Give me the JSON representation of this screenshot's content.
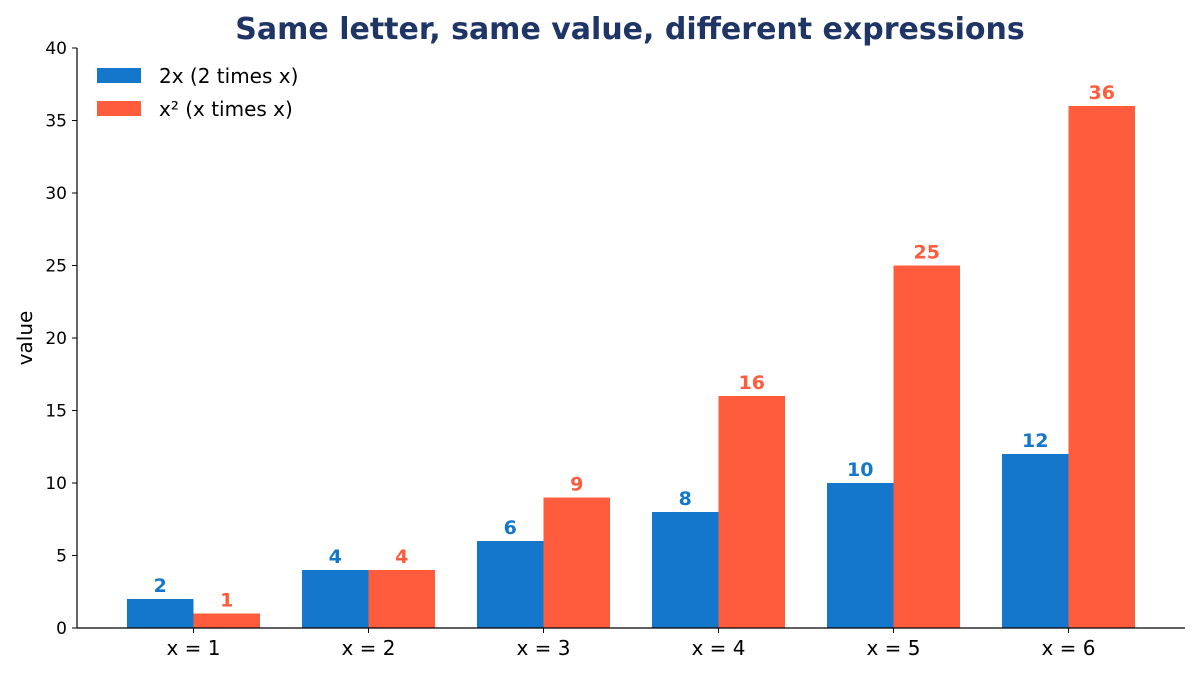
{
  "chart_data": {
    "type": "bar",
    "title": "Same letter, same value, different expressions",
    "xlabel": "",
    "ylabel": "value",
    "categories": [
      "x = 1",
      "x = 2",
      "x = 3",
      "x = 4",
      "x = 5",
      "x = 6"
    ],
    "series": [
      {
        "name": "2x  (2 times x)",
        "color": "#1477CC",
        "values": [
          2,
          4,
          6,
          8,
          10,
          12
        ]
      },
      {
        "name": "x² (x times x)",
        "color": "#FF5C3D",
        "values": [
          1,
          4,
          9,
          16,
          25,
          36
        ]
      }
    ],
    "ylim": [
      0,
      40
    ],
    "yticks": [
      0,
      5,
      10,
      15,
      20,
      25,
      30,
      35,
      40
    ],
    "grid": false,
    "legend_position": "top-left",
    "title_color": "#1F3566",
    "data_labels": true
  }
}
